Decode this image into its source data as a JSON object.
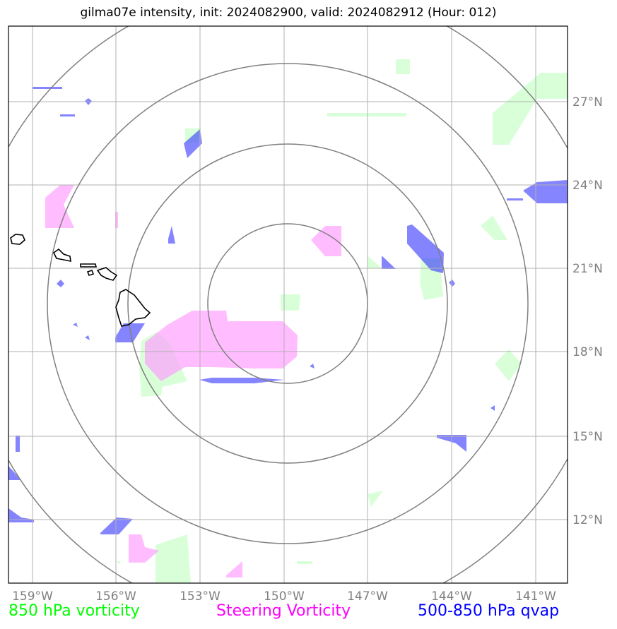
{
  "title": "gilma07e intensity, init: 2024082900, valid: 2024082912 (Hour: 012)",
  "x_ticks": [
    "159°W",
    "156°W",
    "153°W",
    "150°W",
    "147°W",
    "144°W",
    "141°W"
  ],
  "y_ticks": [
    "27°N",
    "24°N",
    "21°N",
    "18°N",
    "15°N",
    "12°N"
  ],
  "legend": {
    "v850": {
      "label": "850 hPa vorticity",
      "color": "#00ff00"
    },
    "steer": {
      "label": "Steering Vorticity",
      "color": "#ff00ff"
    },
    "qvap": {
      "label": "500-850 hPa qvap",
      "color": "#0000ff"
    }
  },
  "colors": {
    "green_fill": "#ccffcc",
    "pink_fill": "#ff99ff",
    "blue_fill": "#4444ff",
    "grid": "#b0b0b0",
    "rings": "#808080",
    "coast": "#000000"
  }
}
